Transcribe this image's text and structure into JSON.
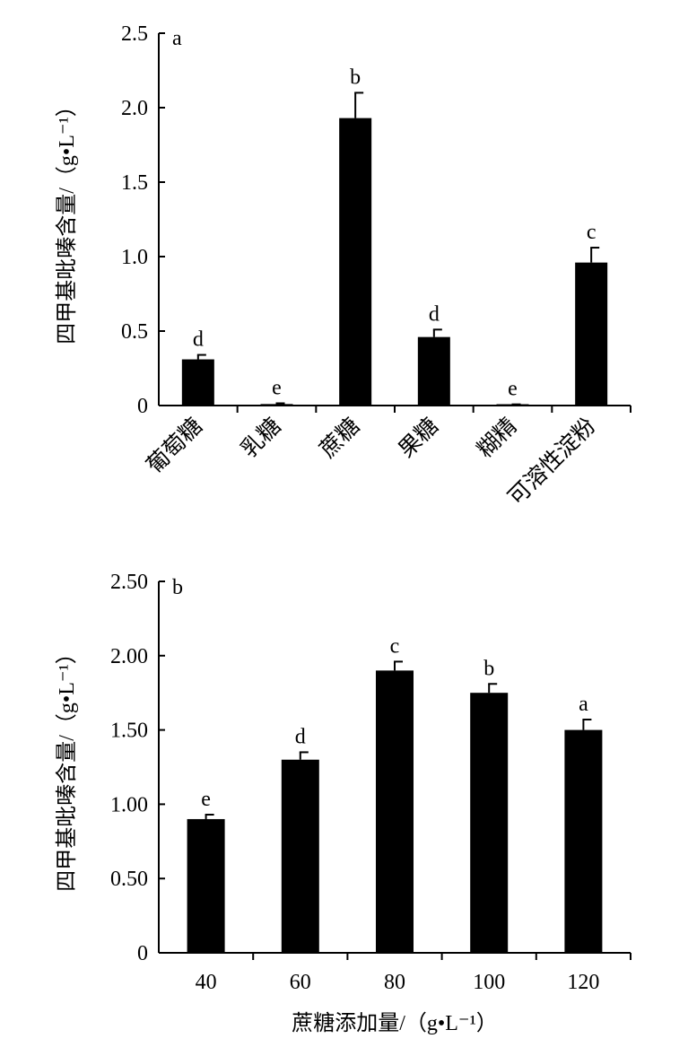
{
  "chart_data": [
    {
      "type": "bar",
      "panel_label": "a",
      "categories": [
        "葡萄糖",
        "乳糖",
        "蔗糖",
        "果糖",
        "糊精",
        "可溶性淀粉"
      ],
      "values": [
        0.31,
        0.01,
        1.93,
        0.46,
        0.005,
        0.96
      ],
      "errors": [
        0.03,
        0.005,
        0.17,
        0.05,
        0.003,
        0.1
      ],
      "significance": [
        "d",
        "e",
        "b",
        "d",
        "e",
        "c"
      ],
      "yticks": [
        "0",
        "0.5",
        "1.0",
        "1.5",
        "2.0",
        "2.5"
      ],
      "ylim": [
        0,
        2.5
      ],
      "ylabel": "四甲基吡嗪含量/（g•L⁻¹）",
      "xlabel": "",
      "bar_color": "#000000"
    },
    {
      "type": "bar",
      "panel_label": "b",
      "categories": [
        "40",
        "60",
        "80",
        "100",
        "120"
      ],
      "values": [
        0.9,
        1.3,
        1.9,
        1.75,
        1.5
      ],
      "errors": [
        0.03,
        0.05,
        0.06,
        0.06,
        0.07
      ],
      "significance": [
        "e",
        "d",
        "c",
        "b",
        "a"
      ],
      "yticks": [
        "0",
        "0.50",
        "1.00",
        "1.50",
        "2.00",
        "2.50"
      ],
      "ylim": [
        0,
        2.5
      ],
      "ylabel": "四甲基吡嗪含量/（g•L⁻¹）",
      "xlabel": "蔗糖添加量/（g•L⁻¹）",
      "bar_color": "#000000"
    }
  ]
}
